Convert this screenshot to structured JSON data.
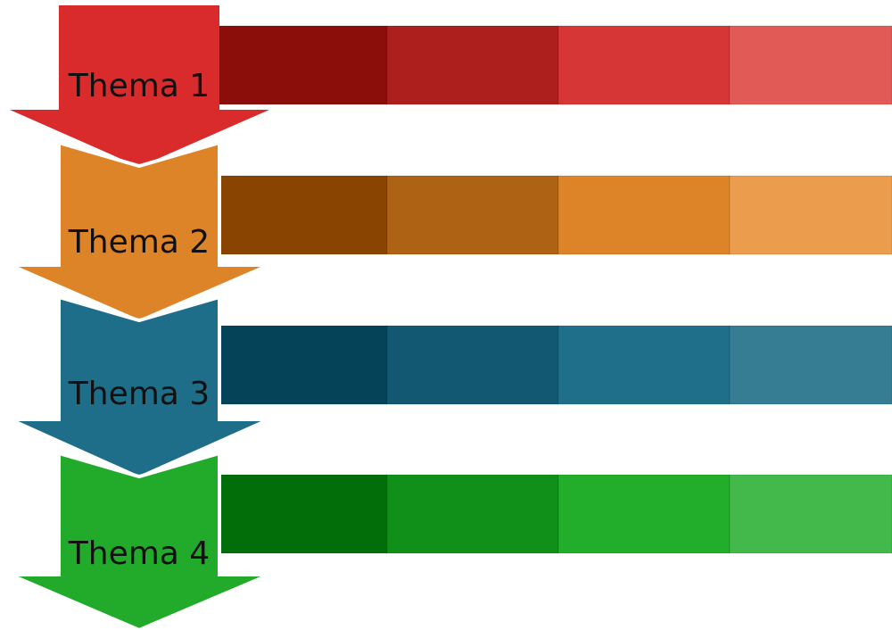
{
  "rows": [
    {
      "label": "Thema 1",
      "arrow_color": "#d92b2b",
      "segment_colors": [
        "#8b0e0b",
        "#ac1f1d",
        "#d73636",
        "#e25a55"
      ]
    },
    {
      "label": "Thema 2",
      "arrow_color": "#dd8428",
      "segment_colors": [
        "#884400",
        "#ae6314",
        "#dd8429",
        "#eb9d4d"
      ]
    },
    {
      "label": "Thema 3",
      "arrow_color": "#1f6e89",
      "segment_colors": [
        "#044358",
        "#135873",
        "#1f6f8a",
        "#367c93"
      ]
    },
    {
      "label": "Thema 4",
      "arrow_color": "#22ab2a",
      "segment_colors": [
        "#026e0a",
        "#108f19",
        "#22ad2b",
        "#42b94a"
      ]
    }
  ]
}
